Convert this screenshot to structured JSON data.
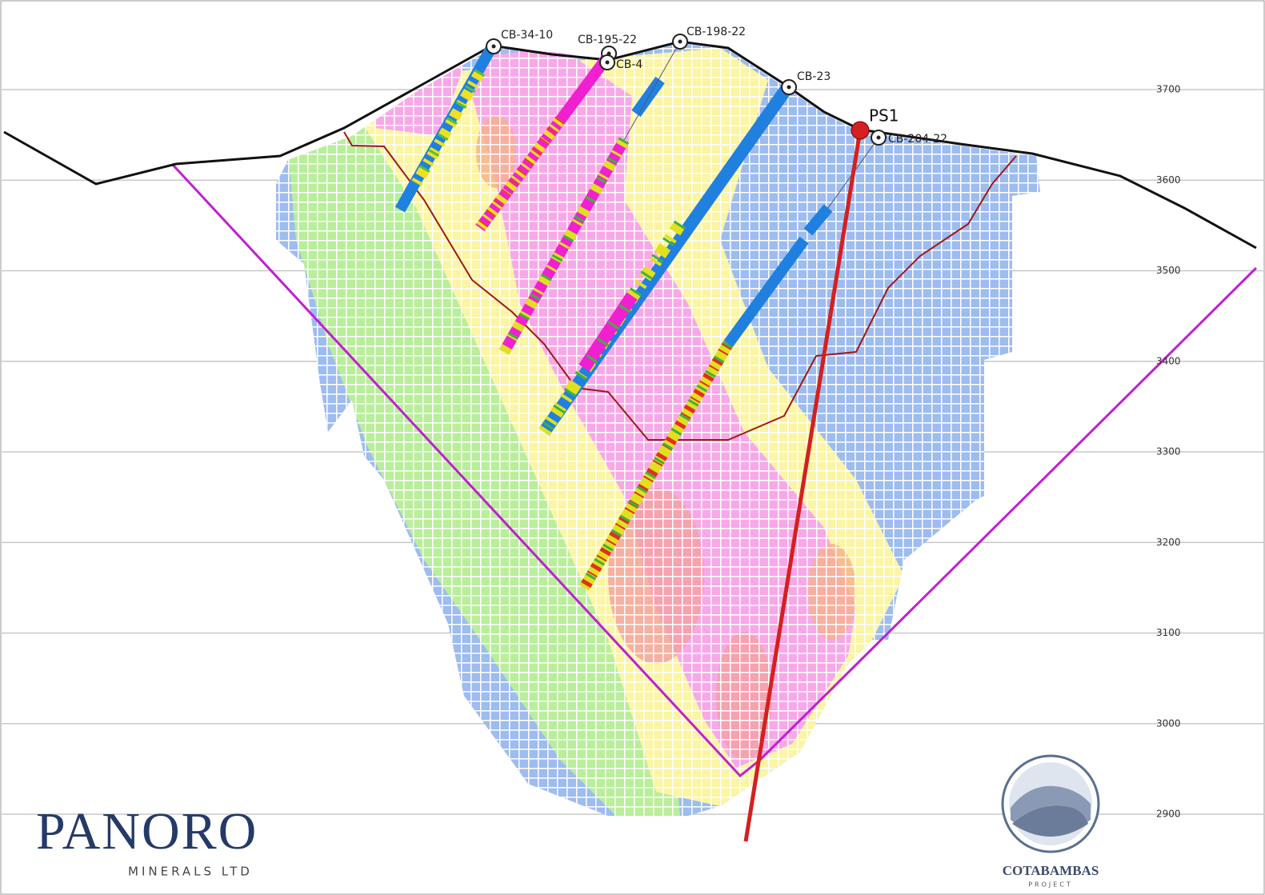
{
  "elevation_labels": [
    3700,
    3600,
    3500,
    3400,
    3300,
    3200,
    3100,
    3000,
    2900
  ],
  "drill_holes": [
    {
      "label": "CB-34-10"
    },
    {
      "label": "CB-195-22"
    },
    {
      "label": "CB-198-22"
    },
    {
      "label": "CB-4"
    },
    {
      "label": "CB-23"
    },
    {
      "label": "CB-204-22"
    }
  ],
  "proposed_hole": {
    "label": "PS1"
  },
  "logos": {
    "panoro": {
      "name": "PANORO",
      "subtitle": "MINERALS LTD"
    },
    "cotabambas": {
      "name": "COTABAMBAS",
      "subtitle": "PROJECT"
    }
  }
}
